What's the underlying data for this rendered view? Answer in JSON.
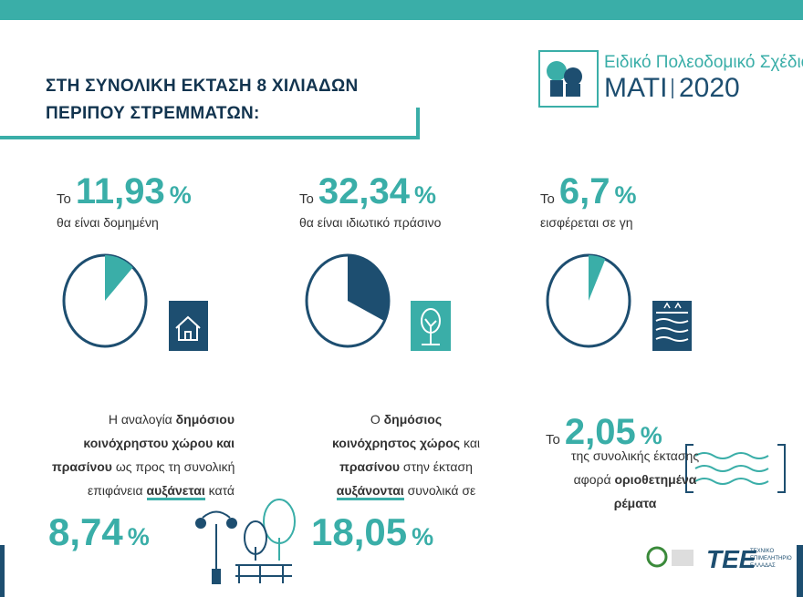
{
  "header": {
    "title_lines": [
      "ΣΤΗ ΣΥΝΟΛΙΚΗ ΕΚΤΑΣΗ 8 ΧΙΛΙΑΔΩΝ",
      "ΠΕΡΙΠΟΥ ΣΤΡΕΜΜΑΤΩΝ:"
    ]
  },
  "logo": {
    "subtitle": "Ειδικό Πολεοδομικό Σχέδιο",
    "name": "ΜΑΤΙ",
    "year": "2020"
  },
  "stats": [
    {
      "prefix": "Το",
      "value": 11.93,
      "value_label": "11,93",
      "unit": "%",
      "caption": "θα είναι δομημένη",
      "color": "#3aaea8"
    },
    {
      "prefix": "Το",
      "value": 32.34,
      "value_label": "32,34",
      "unit": "%",
      "caption": "θα είναι ιδιωτικό πράσινο",
      "color": "#1d4e70"
    },
    {
      "prefix": "Το",
      "value": 6.7,
      "value_label": "6,7",
      "unit": "%",
      "caption": "εισφέρεται σε γη",
      "color": "#3aaea8"
    }
  ],
  "growth": [
    {
      "lines": [
        [
          {
            "text": "Η αναλογία "
          },
          {
            "text": "δημόσιου",
            "style": "bold"
          }
        ],
        [
          {
            "text": "κοινόχρηστου χώρου και",
            "style": "bold"
          }
        ],
        [
          {
            "text": "πρασίνου",
            "style": "bold"
          },
          {
            "text": " ως προς τη συνολική"
          }
        ],
        [
          {
            "text": "επιφάνεια "
          },
          {
            "text": "αυξάνεται",
            "style": "bold-underline"
          },
          {
            "text": " κατά"
          }
        ]
      ],
      "value": 8.74,
      "value_label": "8,74",
      "unit": "%"
    },
    {
      "lines": [
        [
          {
            "text": "Ο "
          },
          {
            "text": "δημόσιος",
            "style": "bold"
          }
        ],
        [
          {
            "text": "κοινόχρηστος χώρος",
            "style": "bold"
          },
          {
            "text": " και"
          }
        ],
        [
          {
            "text": "πρασίνου",
            "style": "bold"
          },
          {
            "text": " στην έκταση"
          }
        ],
        [
          {
            "text": "αυξάνονται",
            "style": "bold-underline"
          },
          {
            "text": " συνολικά σε"
          }
        ]
      ],
      "value": 18.05,
      "value_label": "18,05",
      "unit": "%"
    }
  ],
  "streams": {
    "prefix": "Το",
    "value": 2.05,
    "value_label": "2,05",
    "unit": "%",
    "lines": [
      [
        {
          "text": "της συνολικής έκτασης"
        }
      ],
      [
        {
          "text": "αφορά "
        },
        {
          "text": "οριοθετημένα",
          "style": "bold"
        }
      ],
      [
        {
          "text": "ρέματα",
          "style": "bold"
        }
      ]
    ]
  },
  "footer": {
    "tee": "ΤΕΕ",
    "tee_name_lines": [
      "ΤΕΧΝΙΚΟ",
      "ΕΠΙΜΕΛΗΤΗΡΙΟ",
      "ΕΛΛΑΔΑΣ"
    ]
  }
}
